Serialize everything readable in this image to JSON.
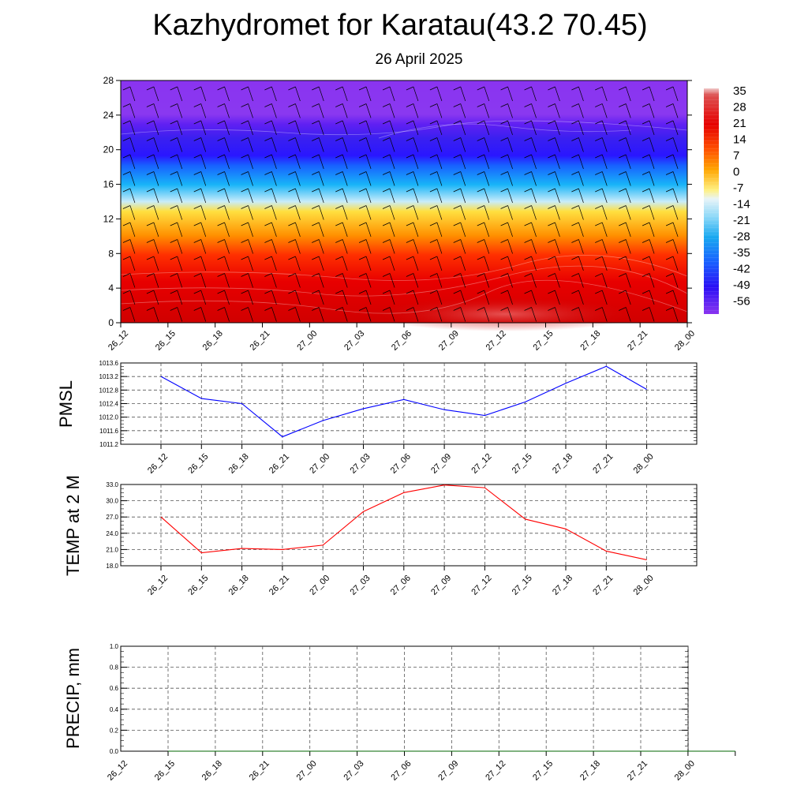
{
  "header": {
    "title": "Kazhydromet for Karatau(43.2 70.45)",
    "date": "26 April 2025"
  },
  "chart_data": [
    {
      "type": "heatmap",
      "name": "vertical-profile",
      "x": [
        "26_12",
        "26_15",
        "26_18",
        "26_21",
        "27_00",
        "27_03",
        "27_06",
        "27_09",
        "27_12",
        "27_15",
        "27_18",
        "27_21",
        "28_00"
      ],
      "ylim": [
        0,
        28
      ],
      "yticks": [
        0,
        4,
        8,
        12,
        16,
        20,
        24,
        28
      ],
      "colorbar_labels": [
        "35",
        "28",
        "21",
        "14",
        "7",
        "0",
        "-7",
        "-14",
        "-21",
        "-28",
        "-35",
        "-42",
        "-49",
        "-56"
      ],
      "layers": [
        {
          "y": [
            0,
            2.5
          ],
          "value": 30
        },
        {
          "y": [
            2.5,
            6
          ],
          "value": 22
        },
        {
          "y": [
            6,
            8
          ],
          "value": 16
        },
        {
          "y": [
            8,
            10
          ],
          "value": 7
        },
        {
          "y": [
            10,
            12
          ],
          "value": -5
        },
        {
          "y": [
            12,
            13
          ],
          "value": -14
        },
        {
          "y": [
            13,
            15
          ],
          "value": -25
        },
        {
          "y": [
            15,
            17
          ],
          "value": -38
        },
        {
          "y": [
            17,
            19
          ],
          "value": -50
        },
        {
          "y": [
            19,
            23
          ],
          "value": -60
        },
        {
          "y": [
            23,
            28
          ],
          "value": -58
        }
      ]
    },
    {
      "type": "line",
      "name": "pmsl",
      "ylabel": "PMSL",
      "ylim": [
        1011.2,
        1013.6
      ],
      "yticks": [
        "1011.2",
        "1011.6",
        "1012.0",
        "1012.4",
        "1012.8",
        "1013.2",
        "1013.6"
      ],
      "x": [
        "26_12",
        "26_15",
        "26_18",
        "26_21",
        "27_00",
        "27_03",
        "27_06",
        "27_09",
        "27_12",
        "27_15",
        "27_18",
        "27_21",
        "28_00"
      ],
      "series": [
        {
          "color": "#0000ff",
          "values": [
            1013.2,
            1012.55,
            1012.4,
            1011.42,
            1011.9,
            1012.25,
            1012.52,
            1012.22,
            1012.05,
            1012.45,
            1013.0,
            1013.5,
            1012.82
          ]
        }
      ]
    },
    {
      "type": "line",
      "name": "temp",
      "ylabel": "TEMP at 2 M",
      "ylim": [
        18.0,
        33.0
      ],
      "yticks": [
        "18.0",
        "21.0",
        "24.0",
        "27.0",
        "30.0",
        "33.0"
      ],
      "x": [
        "26_12",
        "26_15",
        "26_18",
        "26_21",
        "27_00",
        "27_03",
        "27_06",
        "27_09",
        "27_12",
        "27_15",
        "27_18",
        "27_21",
        "28_00"
      ],
      "series": [
        {
          "color": "#ff0000",
          "values": [
            27.0,
            20.4,
            21.2,
            21.0,
            21.8,
            28.0,
            31.5,
            32.9,
            32.4,
            26.6,
            24.8,
            20.7,
            19.1
          ]
        }
      ]
    },
    {
      "type": "line",
      "name": "precip",
      "ylabel": "PRECIP, mm",
      "ylim": [
        0.0,
        1.0
      ],
      "yticks": [
        "0.0",
        "0.2",
        "0.4",
        "0.6",
        "0.8",
        "1.0"
      ],
      "x": [
        "26_12",
        "26_15",
        "26_18",
        "26_21",
        "27_00",
        "27_03",
        "27_06",
        "27_09",
        "27_12",
        "27_15",
        "27_18",
        "27_21",
        "28_00"
      ],
      "series": [
        {
          "color": "#006400",
          "values": [
            0,
            0,
            0,
            0,
            0,
            0,
            0,
            0,
            0,
            0,
            0,
            0,
            0
          ]
        }
      ]
    }
  ]
}
